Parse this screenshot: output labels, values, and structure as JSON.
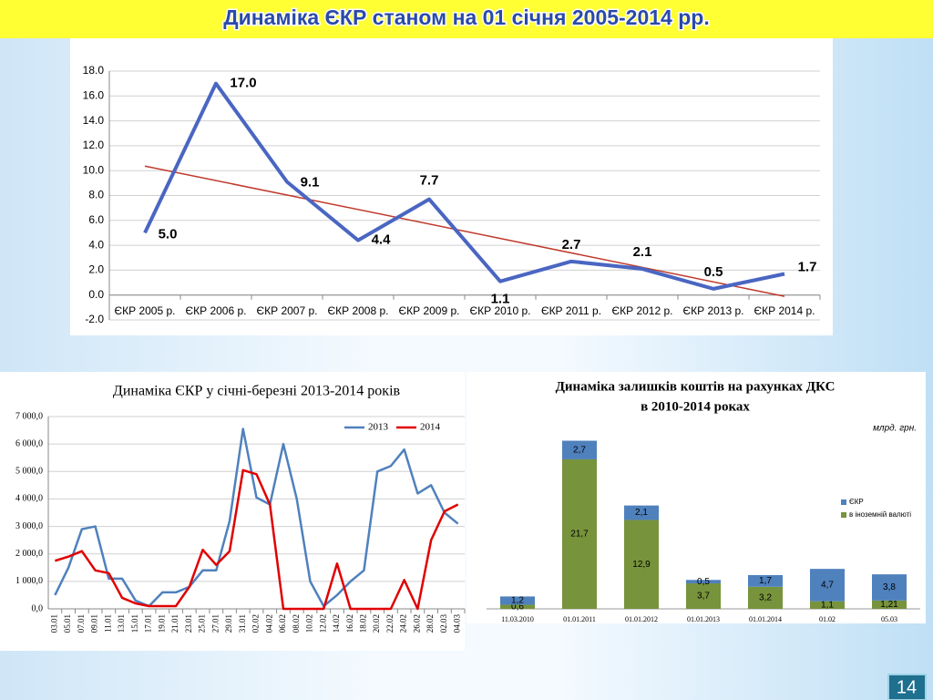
{
  "title": "Динаміка ЄКР станом на 01 січня 2005-2014 рр.",
  "page_number": "14",
  "chart_data": [
    {
      "type": "line",
      "categories": [
        "ЄКР 2005 р.",
        "ЄКР 2006 р.",
        "ЄКР 2007 р.",
        "ЄКР 2008 р.",
        "ЄКР 2009 р.",
        "ЄКР 2010 р.",
        "ЄКР 2011 р.",
        "ЄКР 2012 р.",
        "ЄКР 2013 р.",
        "ЄКР 2014 р."
      ],
      "values": [
        5.0,
        17.0,
        9.1,
        4.4,
        7.7,
        1.1,
        2.7,
        2.1,
        0.5,
        1.7
      ],
      "value_labels": [
        "5.0",
        "17.0",
        "9.1",
        "4.4",
        "7.7",
        "1.1",
        "2.7",
        "2.1",
        "0.5",
        "1.7"
      ],
      "color": "#4a66c2",
      "trendline": {
        "kind": "linear",
        "color": "#c0392b"
      },
      "ylim": [
        -2,
        18
      ],
      "yticks": [
        {
          "value": -2,
          "label": "-2.0"
        },
        {
          "value": 0,
          "label": "0.0"
        },
        {
          "value": 2,
          "label": "2.0"
        },
        {
          "value": 4,
          "label": "4.0"
        },
        {
          "value": 6,
          "label": "6.0"
        },
        {
          "value": 8,
          "label": "8.0"
        },
        {
          "value": 10,
          "label": "10.0"
        },
        {
          "value": 12,
          "label": "12.0"
        },
        {
          "value": 14,
          "label": "14.0"
        },
        {
          "value": 16,
          "label": "16.0"
        },
        {
          "value": 18,
          "label": "18.0"
        }
      ],
      "grid": true
    },
    {
      "type": "line",
      "title": "Динаміка ЄКР у січні-березні 2013-2014 років",
      "categories": [
        "03.01",
        "05.01",
        "07.01",
        "09.01",
        "11.01",
        "13.01",
        "15.01",
        "17.01",
        "19.01",
        "21.01",
        "23.01",
        "25.01",
        "27.01",
        "29.01",
        "31.01",
        "02.02",
        "04.02",
        "06.02",
        "08.02",
        "10.02",
        "12.02",
        "14.02",
        "16.02",
        "18.02",
        "20.02",
        "22.02",
        "24.02",
        "26.02",
        "28.02",
        "02.03",
        "04.03"
      ],
      "series": [
        {
          "name": "2013",
          "color": "#4f81bd",
          "values": [
            500,
            1500,
            2900,
            3000,
            1100,
            1100,
            300,
            100,
            600,
            600,
            800,
            1400,
            1400,
            3200,
            6550,
            4050,
            3800,
            6000,
            4000,
            1000,
            100,
            500,
            1000,
            1400,
            5000,
            5200,
            5800,
            4200,
            4500,
            3500,
            3100
          ]
        },
        {
          "name": "2014",
          "color": "#e00000",
          "values": [
            1750,
            1900,
            2100,
            1400,
            1300,
            400,
            200,
            100,
            100,
            100,
            800,
            2150,
            1600,
            2100,
            5050,
            4900,
            3800,
            0,
            0,
            0,
            0,
            1650,
            0,
            0,
            0,
            0,
            1050,
            0,
            2500,
            3550,
            3800
          ]
        }
      ],
      "legend": "top-right",
      "ylim": [
        0,
        7000
      ],
      "yticks": [
        {
          "value": 0,
          "label": "0,0"
        },
        {
          "value": 1000,
          "label": "1 000,0"
        },
        {
          "value": 2000,
          "label": "2 000,0"
        },
        {
          "value": 3000,
          "label": "3 000,0"
        },
        {
          "value": 4000,
          "label": "4 000,0"
        },
        {
          "value": 5000,
          "label": "5 000,0"
        },
        {
          "value": 6000,
          "label": "6 000,0"
        },
        {
          "value": 7000,
          "label": "7 000,0"
        }
      ],
      "grid": true
    },
    {
      "type": "stacked_bar",
      "title": [
        "Динаміка залишків коштів на рахунках ДКС",
        "в 2010-2014 роках"
      ],
      "unit": "млрд. грн.",
      "categories": [
        "11.03.2010",
        "01.01.2011",
        "01.01.2012",
        "01.01.2013",
        "01.01.2014",
        "01.02",
        "05.03"
      ],
      "series": [
        {
          "name": "в іноземній валюті",
          "color": "#77933c",
          "values": [
            0.6,
            21.7,
            12.9,
            3.7,
            3.2,
            1.1,
            1.21
          ],
          "value_labels": [
            "0,6",
            "21,7",
            "12,9",
            "3,7",
            "3,2",
            "1,1",
            "1,21"
          ]
        },
        {
          "name": "ЄКР",
          "color": "#4f81bd",
          "values": [
            1.2,
            2.7,
            2.1,
            0.5,
            1.7,
            4.7,
            3.8
          ],
          "value_labels": [
            "1,2",
            "2,7",
            "2,1",
            "0,5",
            "1,7",
            "4,7",
            "3,8"
          ]
        }
      ],
      "legend": "right",
      "ylim": [
        0,
        25
      ]
    }
  ]
}
